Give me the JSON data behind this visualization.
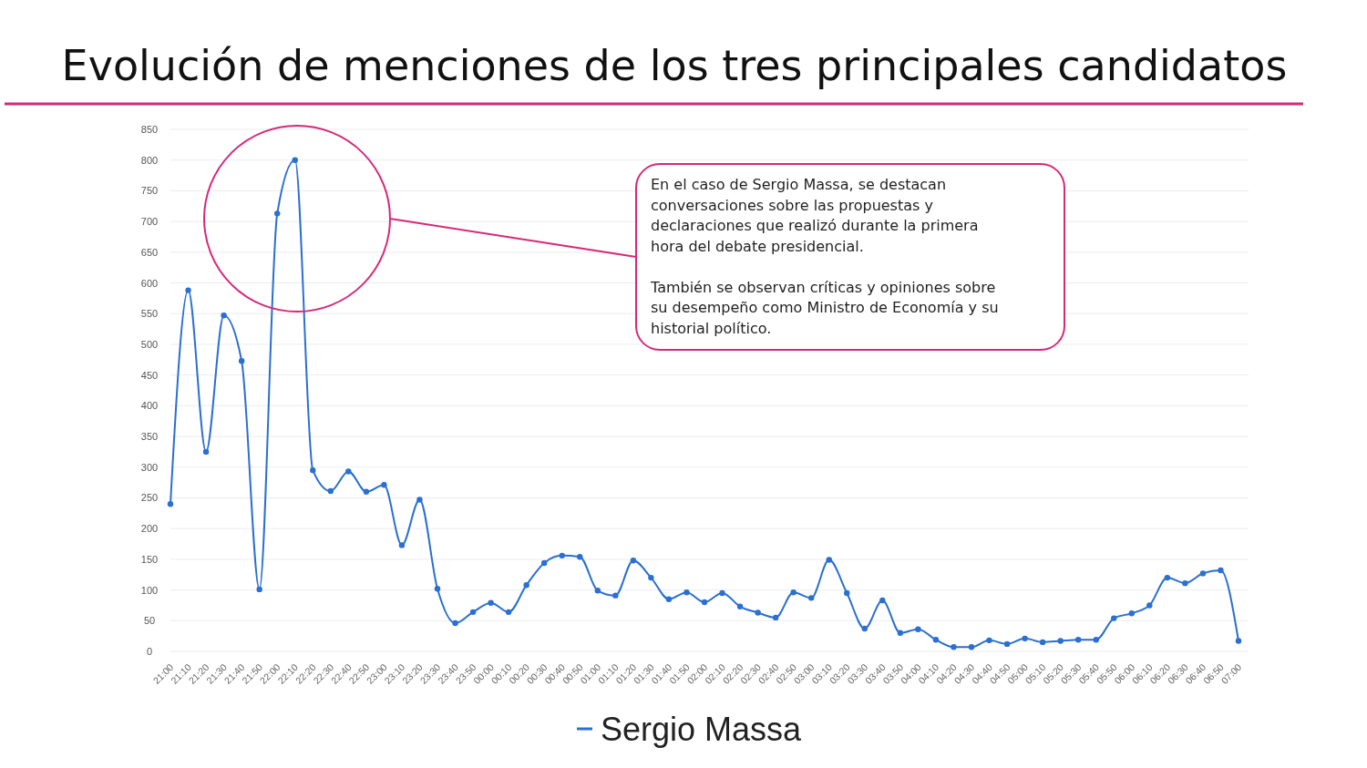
{
  "chart_data": {
    "type": "line",
    "title": "Evolución de menciones de los tres principales candidatos",
    "categories": [
      "21:00",
      "21:10",
      "21:20",
      "21:30",
      "21:40",
      "21:50",
      "22:00",
      "22:10",
      "22:20",
      "22:30",
      "22:40",
      "22:50",
      "23:00",
      "23:10",
      "23:20",
      "23:30",
      "23:40",
      "23:50",
      "00:00",
      "00:10",
      "00:20",
      "00:30",
      "00:40",
      "00:50",
      "01:00",
      "01:10",
      "01:20",
      "01:30",
      "01:40",
      "01:50",
      "02:00",
      "02:10",
      "02:20",
      "02:30",
      "02:40",
      "02:50",
      "03:00",
      "03:10",
      "03:20",
      "03:30",
      "03:40",
      "03:50",
      "04:00",
      "04:10",
      "04:20",
      "04:30",
      "04:40",
      "04:50",
      "05:00",
      "05:10",
      "05:20",
      "05:30",
      "05:40",
      "05:50",
      "06:00",
      "06:10",
      "06:20",
      "06:30",
      "06:40",
      "06:50",
      "07:00"
    ],
    "series": [
      {
        "name": "Sergio Massa",
        "color": "#2a6fd1",
        "values": [
          240,
          588,
          325,
          547,
          473,
          101,
          713,
          800,
          295,
          261,
          293,
          260,
          271,
          173,
          247,
          102,
          46,
          64,
          79,
          64,
          108,
          144,
          156,
          154,
          99,
          91,
          148,
          120,
          85,
          96,
          80,
          95,
          73,
          63,
          55,
          96,
          87,
          149,
          95,
          37,
          83,
          30,
          36,
          19,
          7,
          7,
          18,
          12,
          21,
          15,
          17,
          19,
          19,
          54,
          62,
          75,
          120,
          111,
          127,
          132,
          17
        ]
      }
    ],
    "ylim": [
      0,
      850
    ],
    "yticks": [
      0,
      50,
      100,
      150,
      200,
      250,
      300,
      350,
      400,
      450,
      500,
      550,
      600,
      650,
      700,
      750,
      800,
      850
    ],
    "grid": "y",
    "legend": "bottom",
    "marker": "circle",
    "line_style": "solid",
    "annotations": [
      "En el caso de Sergio Massa, se destacan conversaciones sobre las propuestas y declaraciones que realizó durante la primera hora del debate presidencial.",
      "También se observan críticas y opiniones sobre su desempeño como Ministro de Economía y su historial político."
    ]
  }
}
